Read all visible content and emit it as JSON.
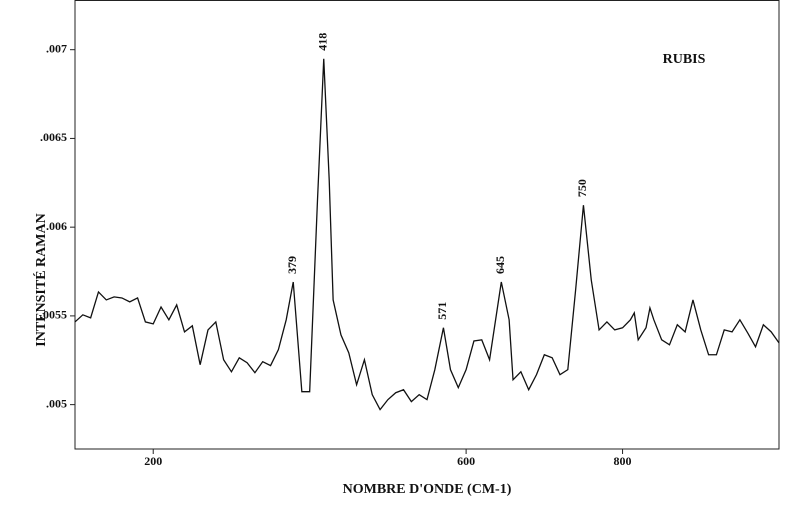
{
  "chart_data": {
    "type": "line",
    "xlabel": "NOMBRE D'ONDE (CM-1)",
    "ylabel": "INTENSITÉ RAMAN",
    "xlim": [
      100,
      1000
    ],
    "ylim": [
      0.00475,
      0.00728
    ],
    "xticks": [
      200,
      600,
      800
    ],
    "yticks": [
      {
        "value": 0.005,
        "label": ".005"
      },
      {
        "value": 0.0055,
        "label": ".0055"
      },
      {
        "value": 0.006,
        "label": ".006"
      },
      {
        "value": 0.0065,
        "label": ".0065"
      },
      {
        "value": 0.007,
        "label": ".007"
      }
    ],
    "legend": "upper right",
    "annotations": [
      "379",
      "418",
      "571",
      "645",
      "750"
    ],
    "x": [
      100,
      110,
      120,
      130,
      140,
      150,
      160,
      170,
      180,
      190,
      200,
      210,
      220,
      230,
      240,
      250,
      260,
      270,
      280,
      290,
      300,
      310,
      320,
      330,
      340,
      350,
      360,
      370,
      379,
      390,
      400,
      410,
      418,
      425,
      430,
      440,
      450,
      460,
      470,
      480,
      490,
      500,
      510,
      520,
      530,
      540,
      550,
      560,
      571,
      580,
      590,
      600,
      610,
      620,
      630,
      645,
      655,
      660,
      670,
      680,
      690,
      700,
      710,
      720,
      730,
      740,
      750,
      760,
      770,
      780,
      790,
      800,
      810,
      815,
      820,
      830,
      835,
      840,
      850,
      860,
      870,
      880,
      890,
      900,
      910,
      920,
      930,
      940,
      950,
      960,
      970,
      980,
      990,
      1000
    ],
    "series": [
      {
        "name": "RUBIS",
        "color": "#111111",
        "values": [
          0.005466,
          0.005506,
          0.005489,
          0.005635,
          0.00559,
          0.005607,
          0.005601,
          0.005579,
          0.005601,
          0.005466,
          0.005455,
          0.00555,
          0.005478,
          0.005562,
          0.00541,
          0.005444,
          0.005225,
          0.005421,
          0.005466,
          0.005253,
          0.005185,
          0.005264,
          0.005236,
          0.00518,
          0.005242,
          0.00522,
          0.00531,
          0.005478,
          0.005691,
          0.005073,
          0.005073,
          0.006152,
          0.006949,
          0.006264,
          0.00559,
          0.005393,
          0.005292,
          0.005112,
          0.005253,
          0.005056,
          0.004972,
          0.005028,
          0.005067,
          0.005084,
          0.005017,
          0.005056,
          0.005028,
          0.005197,
          0.005433,
          0.005197,
          0.005096,
          0.005197,
          0.005359,
          0.005365,
          0.005253,
          0.005691,
          0.005478,
          0.00514,
          0.005185,
          0.005084,
          0.005169,
          0.005281,
          0.005264,
          0.005169,
          0.005197,
          0.005646,
          0.006124,
          0.005702,
          0.005421,
          0.005466,
          0.005421,
          0.005433,
          0.005478,
          0.005517,
          0.005365,
          0.005433,
          0.005545,
          0.005478,
          0.005365,
          0.005337,
          0.00545,
          0.00541,
          0.00559,
          0.005421,
          0.005281,
          0.005281,
          0.005421,
          0.00541,
          0.005478,
          0.005404,
          0.005326,
          0.00545,
          0.00541,
          0.005348
        ]
      }
    ]
  }
}
